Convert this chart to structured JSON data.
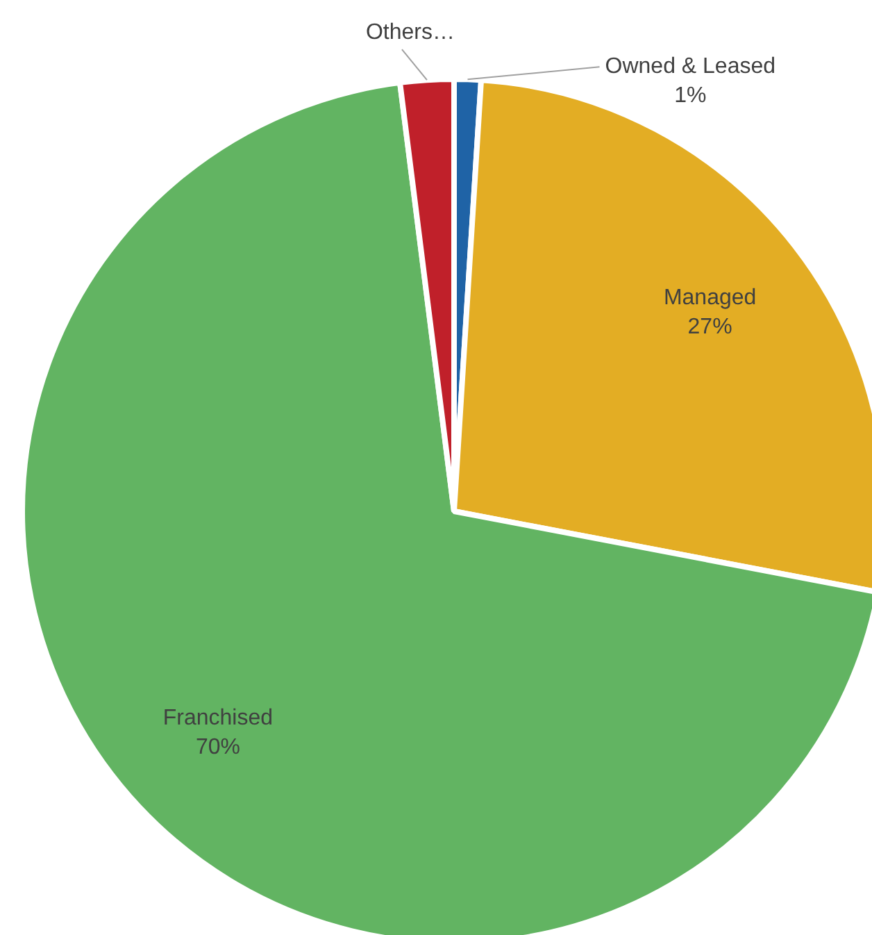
{
  "chart_data": {
    "type": "pie",
    "categories": [
      "Owned & Leased",
      "Managed",
      "Franchised",
      "Others…"
    ],
    "values": [
      1,
      27,
      70,
      2
    ],
    "colors": [
      "#1f63a6",
      "#e3ad24",
      "#62b462",
      "#c0202a"
    ],
    "value_labels": [
      "1%",
      "27%",
      "70%",
      null
    ],
    "legend": false
  }
}
